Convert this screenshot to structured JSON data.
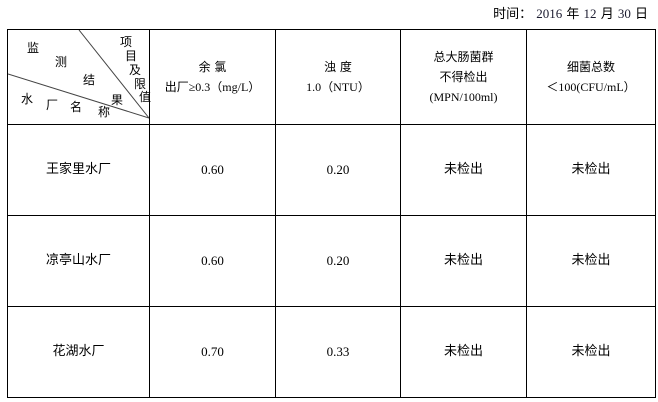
{
  "date": {
    "label": "时间：",
    "year": "2016",
    "year_unit": "年",
    "month": "12",
    "month_unit": "月",
    "day": "30",
    "day_unit": "日"
  },
  "corner": {
    "top": [
      "项",
      "目",
      "及",
      "限",
      "值"
    ],
    "middle": [
      "监",
      "测",
      "结",
      "果"
    ],
    "bottom": [
      "水",
      "厂",
      "名",
      "称"
    ]
  },
  "columns": [
    {
      "line1": "余 氯",
      "line2": "出厂≥0.3（mg/L）"
    },
    {
      "line1": "浊 度",
      "line2": "1.0（NTU）"
    },
    {
      "line1": "总大肠菌群",
      "line2": "不得检出",
      "line3": "(MPN/100ml)"
    },
    {
      "line1": "细菌总数",
      "line2": "＜100(CFU/mL）"
    }
  ],
  "rows": [
    {
      "name": "王家里水厂",
      "values": [
        "0.60",
        "0.20",
        "未检出",
        "未检出"
      ]
    },
    {
      "name": "凉亭山水厂",
      "values": [
        "0.60",
        "0.20",
        "未检出",
        "未检出"
      ]
    },
    {
      "name": "花湖水厂",
      "values": [
        "0.70",
        "0.33",
        "未检出",
        "未检出"
      ]
    }
  ]
}
